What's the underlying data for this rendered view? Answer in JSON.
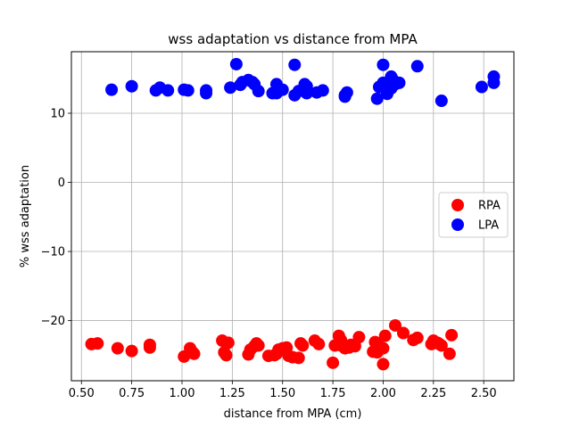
{
  "chart_data": {
    "type": "scatter",
    "title": "wss adaptation vs distance from MPA",
    "xlabel": "distance from MPA (cm)",
    "ylabel": "% wss adaptation",
    "xlim": [
      0.45,
      2.65
    ],
    "ylim": [
      -28.7,
      18.9
    ],
    "xticks": [
      0.5,
      0.75,
      1.0,
      1.25,
      1.5,
      1.75,
      2.0,
      2.25,
      2.5
    ],
    "xtick_labels": [
      "0.50",
      "0.75",
      "1.00",
      "1.25",
      "1.50",
      "1.75",
      "2.00",
      "2.25",
      "2.50"
    ],
    "yticks": [
      10,
      0,
      -10,
      -20
    ],
    "ytick_labels": [
      "10",
      "0",
      "−10",
      "−20"
    ],
    "grid": true,
    "legend_position": "center-right",
    "series": [
      {
        "name": "RPA",
        "color": "#ff0000",
        "points": [
          [
            0.55,
            -23.4
          ],
          [
            0.58,
            -23.3
          ],
          [
            0.68,
            -24.0
          ],
          [
            0.75,
            -24.4
          ],
          [
            0.84,
            -23.5
          ],
          [
            0.84,
            -23.9
          ],
          [
            1.01,
            -25.2
          ],
          [
            1.04,
            -24.0
          ],
          [
            1.05,
            -24.5
          ],
          [
            1.06,
            -24.8
          ],
          [
            1.2,
            -22.9
          ],
          [
            1.21,
            -24.6
          ],
          [
            1.22,
            -25.0
          ],
          [
            1.23,
            -23.2
          ],
          [
            1.33,
            -24.9
          ],
          [
            1.34,
            -24.2
          ],
          [
            1.36,
            -23.7
          ],
          [
            1.37,
            -23.3
          ],
          [
            1.38,
            -23.6
          ],
          [
            1.43,
            -25.1
          ],
          [
            1.46,
            -25.0
          ],
          [
            1.47,
            -24.8
          ],
          [
            1.48,
            -24.2
          ],
          [
            1.5,
            -24.0
          ],
          [
            1.52,
            -23.9
          ],
          [
            1.53,
            -25.1
          ],
          [
            1.55,
            -25.3
          ],
          [
            1.58,
            -25.4
          ],
          [
            1.59,
            -23.3
          ],
          [
            1.6,
            -23.6
          ],
          [
            1.66,
            -22.9
          ],
          [
            1.68,
            -23.4
          ],
          [
            1.75,
            -26.1
          ],
          [
            1.76,
            -23.6
          ],
          [
            1.78,
            -22.2
          ],
          [
            1.79,
            -22.8
          ],
          [
            1.79,
            -23.6
          ],
          [
            1.81,
            -24.0
          ],
          [
            1.83,
            -23.9
          ],
          [
            1.84,
            -23.5
          ],
          [
            1.86,
            -23.7
          ],
          [
            1.88,
            -22.4
          ],
          [
            1.95,
            -24.5
          ],
          [
            1.96,
            -23.1
          ],
          [
            1.97,
            -24.6
          ],
          [
            1.98,
            -23.7
          ],
          [
            2.0,
            -26.3
          ],
          [
            2.0,
            -24.0
          ],
          [
            2.01,
            -22.2
          ],
          [
            2.06,
            -20.7
          ],
          [
            2.1,
            -21.8
          ],
          [
            2.15,
            -22.8
          ],
          [
            2.17,
            -22.5
          ],
          [
            2.24,
            -23.4
          ],
          [
            2.25,
            -22.9
          ],
          [
            2.27,
            -23.2
          ],
          [
            2.28,
            -23.4
          ],
          [
            2.29,
            -23.6
          ],
          [
            2.33,
            -24.8
          ],
          [
            2.34,
            -22.1
          ]
        ]
      },
      {
        "name": "LPA",
        "color": "#0000ff",
        "points": [
          [
            0.65,
            13.4
          ],
          [
            0.75,
            13.9
          ],
          [
            0.87,
            13.3
          ],
          [
            0.89,
            13.7
          ],
          [
            0.93,
            13.3
          ],
          [
            1.01,
            13.4
          ],
          [
            1.03,
            13.3
          ],
          [
            1.12,
            12.9
          ],
          [
            1.12,
            13.3
          ],
          [
            1.24,
            13.7
          ],
          [
            1.27,
            17.1
          ],
          [
            1.29,
            14.1
          ],
          [
            1.3,
            14.5
          ],
          [
            1.33,
            14.8
          ],
          [
            1.35,
            14.5
          ],
          [
            1.36,
            14.2
          ],
          [
            1.38,
            13.2
          ],
          [
            1.45,
            12.9
          ],
          [
            1.47,
            14.2
          ],
          [
            1.47,
            12.9
          ],
          [
            1.5,
            13.4
          ],
          [
            1.56,
            17.0
          ],
          [
            1.56,
            12.6
          ],
          [
            1.58,
            13.2
          ],
          [
            1.61,
            14.2
          ],
          [
            1.62,
            13.9
          ],
          [
            1.62,
            12.9
          ],
          [
            1.67,
            13.0
          ],
          [
            1.7,
            13.3
          ],
          [
            1.81,
            12.6
          ],
          [
            1.81,
            12.4
          ],
          [
            1.82,
            13.0
          ],
          [
            1.97,
            12.1
          ],
          [
            1.98,
            13.8
          ],
          [
            2.0,
            17.0
          ],
          [
            2.0,
            14.4
          ],
          [
            2.01,
            13.8
          ],
          [
            2.02,
            12.8
          ],
          [
            2.04,
            15.3
          ],
          [
            2.04,
            13.6
          ],
          [
            2.05,
            14.8
          ],
          [
            2.06,
            14.2
          ],
          [
            2.08,
            14.4
          ],
          [
            2.17,
            16.8
          ],
          [
            2.29,
            11.8
          ],
          [
            2.49,
            13.8
          ],
          [
            2.55,
            15.3
          ],
          [
            2.55,
            14.4
          ]
        ]
      }
    ]
  }
}
